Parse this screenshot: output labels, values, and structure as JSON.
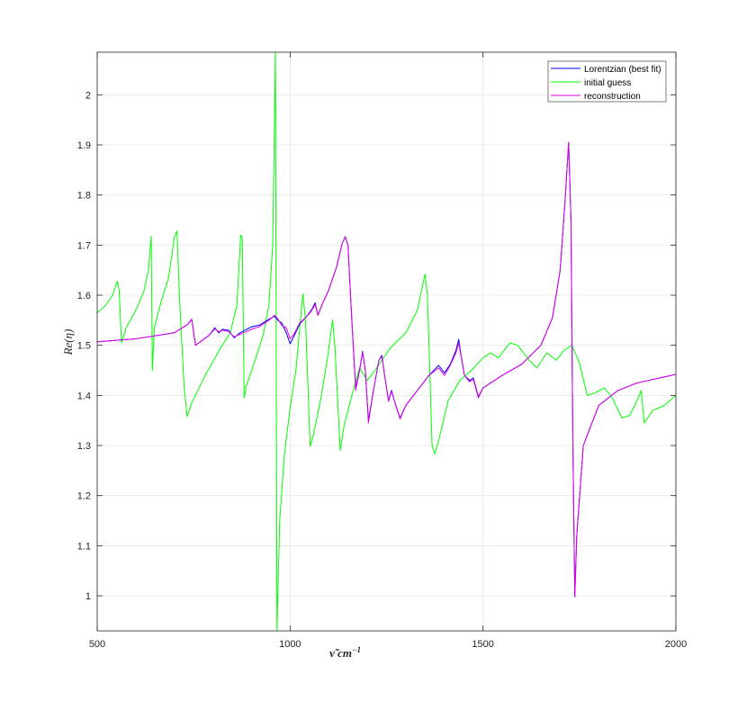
{
  "chart_data": {
    "type": "line",
    "xlabel": "ν̃ cm",
    "xlabel_exponent": "−1",
    "ylabel": "Re(η)",
    "xlim": [
      500,
      2000
    ],
    "ylim": [
      0.93,
      2.085
    ],
    "xticks": [
      500,
      1000,
      1500,
      2000
    ],
    "xtick_labels": [
      "500",
      "1000",
      "1500",
      "2000"
    ],
    "yticks": [
      1,
      1.1,
      1.2,
      1.3,
      1.4,
      1.5,
      1.6,
      1.7,
      1.8,
      1.9,
      2
    ],
    "ytick_labels": [
      "1",
      "1.1",
      "1.2",
      "1.3",
      "1.4",
      "1.5",
      "1.6",
      "1.7",
      "1.8",
      "1.9",
      "2"
    ],
    "grid": true,
    "legend_position": "top-right",
    "series": [
      {
        "name": "Lorentzian (best fit)",
        "color": "#0000ff",
        "points": [
          [
            500,
            1.507
          ],
          [
            600,
            1.513
          ],
          [
            700,
            1.525
          ],
          [
            735,
            1.542
          ],
          [
            745,
            1.552
          ],
          [
            755,
            1.5
          ],
          [
            790,
            1.52
          ],
          [
            805,
            1.535
          ],
          [
            815,
            1.525
          ],
          [
            825,
            1.532
          ],
          [
            840,
            1.53
          ],
          [
            855,
            1.515
          ],
          [
            870,
            1.525
          ],
          [
            900,
            1.537
          ],
          [
            920,
            1.54
          ],
          [
            945,
            1.552
          ],
          [
            960,
            1.558
          ],
          [
            968,
            1.55
          ],
          [
            978,
            1.545
          ],
          [
            990,
            1.525
          ],
          [
            1000,
            1.503
          ],
          [
            1010,
            1.518
          ],
          [
            1025,
            1.543
          ],
          [
            1040,
            1.555
          ],
          [
            1055,
            1.57
          ],
          [
            1065,
            1.585
          ],
          [
            1072,
            1.56
          ],
          [
            1085,
            1.585
          ],
          [
            1100,
            1.61
          ],
          [
            1120,
            1.655
          ],
          [
            1135,
            1.703
          ],
          [
            1143,
            1.717
          ],
          [
            1150,
            1.7
          ],
          [
            1160,
            1.55
          ],
          [
            1170,
            1.415
          ],
          [
            1180,
            1.45
          ],
          [
            1188,
            1.488
          ],
          [
            1195,
            1.45
          ],
          [
            1203,
            1.35
          ],
          [
            1215,
            1.405
          ],
          [
            1230,
            1.47
          ],
          [
            1238,
            1.48
          ],
          [
            1245,
            1.44
          ],
          [
            1255,
            1.39
          ],
          [
            1263,
            1.41
          ],
          [
            1270,
            1.39
          ],
          [
            1285,
            1.355
          ],
          [
            1300,
            1.38
          ],
          [
            1330,
            1.41
          ],
          [
            1360,
            1.44
          ],
          [
            1385,
            1.46
          ],
          [
            1400,
            1.445
          ],
          [
            1415,
            1.462
          ],
          [
            1430,
            1.49
          ],
          [
            1437,
            1.512
          ],
          [
            1443,
            1.48
          ],
          [
            1452,
            1.44
          ],
          [
            1465,
            1.43
          ],
          [
            1475,
            1.435
          ],
          [
            1488,
            1.397
          ],
          [
            1500,
            1.415
          ],
          [
            1550,
            1.44
          ],
          [
            1600,
            1.462
          ],
          [
            1650,
            1.5
          ],
          [
            1680,
            1.555
          ],
          [
            1700,
            1.65
          ],
          [
            1712,
            1.78
          ],
          [
            1722,
            1.905
          ],
          [
            1728,
            1.75
          ],
          [
            1733,
            1.3
          ],
          [
            1738,
            0.998
          ],
          [
            1743,
            1.12
          ],
          [
            1760,
            1.3
          ],
          [
            1800,
            1.38
          ],
          [
            1850,
            1.41
          ],
          [
            1900,
            1.425
          ],
          [
            2000,
            1.442
          ]
        ]
      },
      {
        "name": "initial guess",
        "color": "#00ff00",
        "points": [
          [
            500,
            1.565
          ],
          [
            520,
            1.578
          ],
          [
            540,
            1.6
          ],
          [
            552,
            1.628
          ],
          [
            557,
            1.61
          ],
          [
            563,
            1.505
          ],
          [
            575,
            1.535
          ],
          [
            600,
            1.57
          ],
          [
            620,
            1.605
          ],
          [
            633,
            1.65
          ],
          [
            640,
            1.718
          ],
          [
            643,
            1.45
          ],
          [
            648,
            1.535
          ],
          [
            665,
            1.585
          ],
          [
            685,
            1.635
          ],
          [
            700,
            1.715
          ],
          [
            707,
            1.728
          ],
          [
            713,
            1.6
          ],
          [
            725,
            1.42
          ],
          [
            733,
            1.358
          ],
          [
            745,
            1.385
          ],
          [
            780,
            1.44
          ],
          [
            820,
            1.495
          ],
          [
            845,
            1.525
          ],
          [
            862,
            1.58
          ],
          [
            872,
            1.72
          ],
          [
            876,
            1.715
          ],
          [
            881,
            1.395
          ],
          [
            887,
            1.42
          ],
          [
            905,
            1.46
          ],
          [
            930,
            1.52
          ],
          [
            945,
            1.58
          ],
          [
            955,
            1.7
          ],
          [
            962,
            2.085
          ],
          [
            966,
            0.93
          ],
          [
            973,
            1.15
          ],
          [
            985,
            1.28
          ],
          [
            1000,
            1.375
          ],
          [
            1015,
            1.45
          ],
          [
            1025,
            1.535
          ],
          [
            1033,
            1.603
          ],
          [
            1040,
            1.55
          ],
          [
            1052,
            1.298
          ],
          [
            1060,
            1.32
          ],
          [
            1080,
            1.395
          ],
          [
            1098,
            1.48
          ],
          [
            1110,
            1.55
          ],
          [
            1116,
            1.5
          ],
          [
            1130,
            1.29
          ],
          [
            1140,
            1.34
          ],
          [
            1160,
            1.4
          ],
          [
            1180,
            1.455
          ],
          [
            1200,
            1.43
          ],
          [
            1220,
            1.45
          ],
          [
            1260,
            1.495
          ],
          [
            1300,
            1.525
          ],
          [
            1330,
            1.57
          ],
          [
            1345,
            1.625
          ],
          [
            1350,
            1.642
          ],
          [
            1356,
            1.6
          ],
          [
            1368,
            1.3
          ],
          [
            1375,
            1.283
          ],
          [
            1385,
            1.31
          ],
          [
            1410,
            1.39
          ],
          [
            1440,
            1.43
          ],
          [
            1470,
            1.45
          ],
          [
            1500,
            1.475
          ],
          [
            1520,
            1.485
          ],
          [
            1540,
            1.475
          ],
          [
            1570,
            1.505
          ],
          [
            1590,
            1.5
          ],
          [
            1620,
            1.47
          ],
          [
            1640,
            1.455
          ],
          [
            1665,
            1.485
          ],
          [
            1690,
            1.47
          ],
          [
            1710,
            1.49
          ],
          [
            1730,
            1.5
          ],
          [
            1750,
            1.465
          ],
          [
            1770,
            1.4
          ],
          [
            1790,
            1.405
          ],
          [
            1815,
            1.415
          ],
          [
            1835,
            1.395
          ],
          [
            1860,
            1.355
          ],
          [
            1880,
            1.36
          ],
          [
            1900,
            1.39
          ],
          [
            1910,
            1.41
          ],
          [
            1918,
            1.345
          ],
          [
            1940,
            1.37
          ],
          [
            1970,
            1.38
          ],
          [
            2000,
            1.4
          ]
        ]
      },
      {
        "name": "reconstruction",
        "color": "#e000e0",
        "points": [
          [
            500,
            1.507
          ],
          [
            600,
            1.513
          ],
          [
            700,
            1.525
          ],
          [
            735,
            1.542
          ],
          [
            745,
            1.552
          ],
          [
            755,
            1.5
          ],
          [
            790,
            1.52
          ],
          [
            805,
            1.533
          ],
          [
            815,
            1.527
          ],
          [
            825,
            1.53
          ],
          [
            840,
            1.528
          ],
          [
            855,
            1.517
          ],
          [
            870,
            1.522
          ],
          [
            900,
            1.532
          ],
          [
            920,
            1.537
          ],
          [
            945,
            1.55
          ],
          [
            960,
            1.56
          ],
          [
            968,
            1.553
          ],
          [
            978,
            1.54
          ],
          [
            990,
            1.535
          ],
          [
            1000,
            1.513
          ],
          [
            1010,
            1.522
          ],
          [
            1025,
            1.545
          ],
          [
            1040,
            1.555
          ],
          [
            1055,
            1.568
          ],
          [
            1065,
            1.582
          ],
          [
            1072,
            1.56
          ],
          [
            1085,
            1.585
          ],
          [
            1100,
            1.61
          ],
          [
            1120,
            1.655
          ],
          [
            1135,
            1.703
          ],
          [
            1143,
            1.717
          ],
          [
            1150,
            1.7
          ],
          [
            1160,
            1.55
          ],
          [
            1170,
            1.41
          ],
          [
            1180,
            1.45
          ],
          [
            1188,
            1.486
          ],
          [
            1195,
            1.45
          ],
          [
            1203,
            1.345
          ],
          [
            1215,
            1.405
          ],
          [
            1230,
            1.47
          ],
          [
            1238,
            1.478
          ],
          [
            1245,
            1.44
          ],
          [
            1255,
            1.388
          ],
          [
            1263,
            1.408
          ],
          [
            1270,
            1.39
          ],
          [
            1285,
            1.353
          ],
          [
            1300,
            1.38
          ],
          [
            1330,
            1.41
          ],
          [
            1360,
            1.44
          ],
          [
            1385,
            1.455
          ],
          [
            1400,
            1.44
          ],
          [
            1415,
            1.46
          ],
          [
            1430,
            1.485
          ],
          [
            1437,
            1.505
          ],
          [
            1443,
            1.478
          ],
          [
            1452,
            1.44
          ],
          [
            1465,
            1.427
          ],
          [
            1475,
            1.432
          ],
          [
            1488,
            1.395
          ],
          [
            1500,
            1.415
          ],
          [
            1550,
            1.44
          ],
          [
            1600,
            1.462
          ],
          [
            1650,
            1.5
          ],
          [
            1680,
            1.555
          ],
          [
            1700,
            1.65
          ],
          [
            1712,
            1.78
          ],
          [
            1722,
            1.905
          ],
          [
            1728,
            1.75
          ],
          [
            1733,
            1.3
          ],
          [
            1738,
            0.998
          ],
          [
            1743,
            1.12
          ],
          [
            1760,
            1.3
          ],
          [
            1800,
            1.38
          ],
          [
            1850,
            1.41
          ],
          [
            1900,
            1.425
          ],
          [
            2000,
            1.442
          ]
        ]
      }
    ]
  }
}
